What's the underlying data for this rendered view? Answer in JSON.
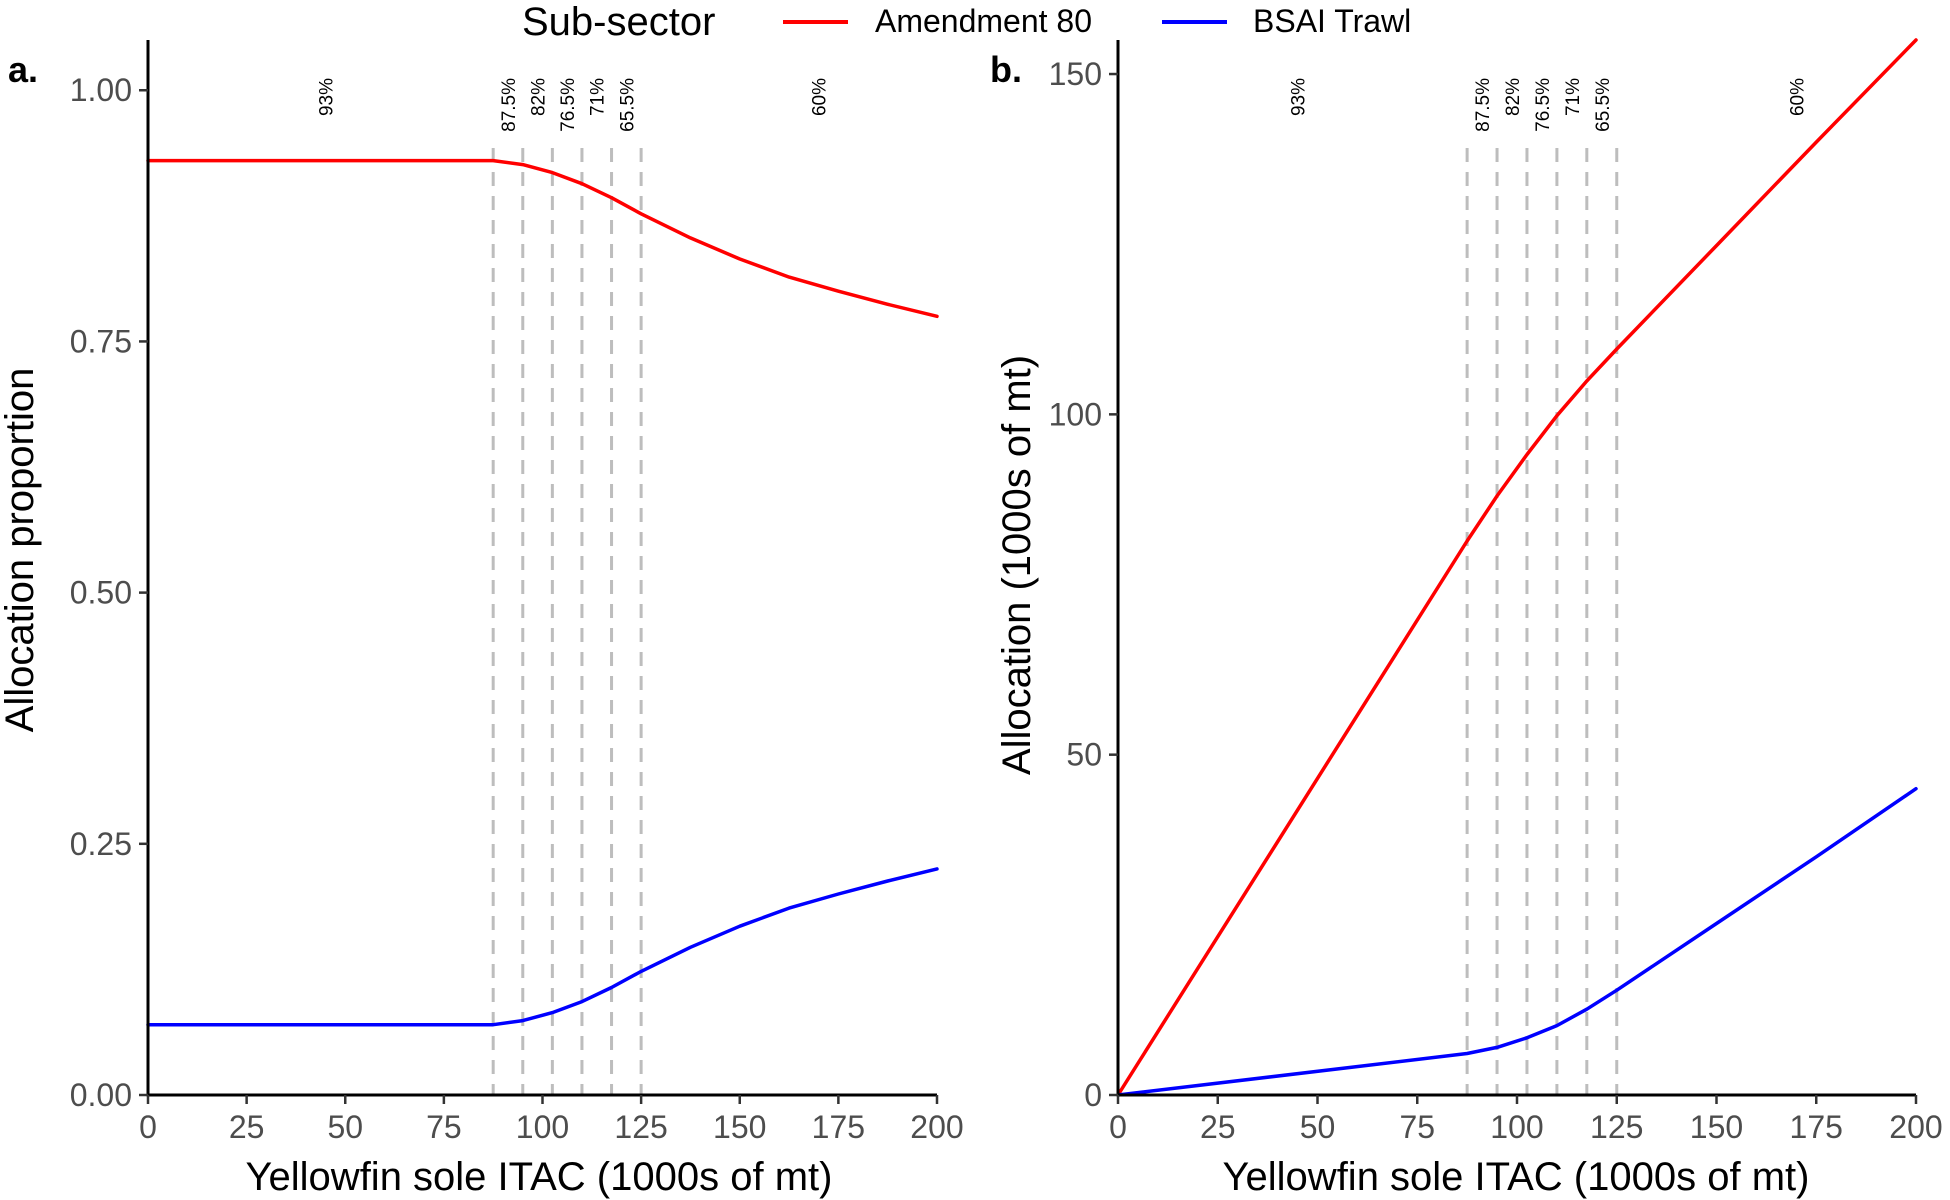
{
  "legend": {
    "title": "Sub-sector",
    "items": [
      {
        "label": "Amendment 80",
        "color": "#ff0000"
      },
      {
        "label": "BSAI Trawl",
        "color": "#0000ff"
      }
    ]
  },
  "chart_data": [
    {
      "panel_tag": "a.",
      "type": "line",
      "xlabel": "Yellowfin sole ITAC (1000s of mt)",
      "ylabel": "Allocation proportion",
      "xlim": [
        0,
        200
      ],
      "ylim": [
        0,
        1.05
      ],
      "xticks": [
        0,
        25,
        50,
        75,
        100,
        125,
        150,
        175,
        200
      ],
      "xtick_labels": [
        "0",
        "25",
        "50",
        "75",
        "100",
        "125",
        "150",
        "175",
        "200"
      ],
      "yticks": [
        0,
        0.25,
        0.5,
        0.75,
        1.0
      ],
      "ytick_labels": [
        "0.00",
        "0.25",
        "0.50",
        "0.75",
        "1.00"
      ],
      "grid": false,
      "vertical_lines": [
        87.5,
        95,
        102.5,
        110,
        117.5,
        125
      ],
      "regime_labels": [
        {
          "text": "93%",
          "x": 45
        },
        {
          "text": "87.5%",
          "x": 91.25
        },
        {
          "text": "82%",
          "x": 98.75
        },
        {
          "text": "76.5%",
          "x": 106.25
        },
        {
          "text": "71%",
          "x": 113.75
        },
        {
          "text": "65.5%",
          "x": 121.25
        },
        {
          "text": "60%",
          "x": 170
        }
      ],
      "series": [
        {
          "name": "Amendment 80",
          "color": "#ff0000",
          "x": [
            0,
            87.5,
            95,
            102.5,
            110,
            117.5,
            125,
            137.5,
            150,
            162.5,
            175,
            187.5,
            200
          ],
          "y": [
            0.93,
            0.93,
            0.926,
            0.918,
            0.907,
            0.893,
            0.877,
            0.853,
            0.832,
            0.814,
            0.8,
            0.787,
            0.775
          ]
        },
        {
          "name": "BSAI Trawl",
          "color": "#0000ff",
          "x": [
            0,
            87.5,
            95,
            102.5,
            110,
            117.5,
            125,
            137.5,
            150,
            162.5,
            175,
            187.5,
            200
          ],
          "y": [
            0.07,
            0.07,
            0.074,
            0.082,
            0.093,
            0.107,
            0.123,
            0.147,
            0.168,
            0.186,
            0.2,
            0.213,
            0.225
          ]
        }
      ]
    },
    {
      "panel_tag": "b.",
      "type": "line",
      "xlabel": "Yellowfin sole ITAC (1000s of mt)",
      "ylabel": "Allocation (1000s of mt)",
      "xlim": [
        0,
        200
      ],
      "ylim": [
        0,
        155
      ],
      "xticks": [
        0,
        25,
        50,
        75,
        100,
        125,
        150,
        175,
        200
      ],
      "xtick_labels": [
        "0",
        "25",
        "50",
        "75",
        "100",
        "125",
        "150",
        "175",
        "200"
      ],
      "yticks": [
        0,
        50,
        100,
        150
      ],
      "ytick_labels": [
        "0",
        "50",
        "100",
        "150"
      ],
      "grid": false,
      "vertical_lines": [
        87.5,
        95,
        102.5,
        110,
        117.5,
        125
      ],
      "regime_labels": [
        {
          "text": "93%",
          "x": 45
        },
        {
          "text": "87.5%",
          "x": 91.25
        },
        {
          "text": "82%",
          "x": 98.75
        },
        {
          "text": "76.5%",
          "x": 106.25
        },
        {
          "text": "71%",
          "x": 113.75
        },
        {
          "text": "65.5%",
          "x": 121.25
        },
        {
          "text": "60%",
          "x": 170
        }
      ],
      "series": [
        {
          "name": "Amendment 80",
          "color": "#ff0000",
          "x": [
            0,
            87.5,
            95,
            102.5,
            110,
            117.5,
            125,
            150,
            175,
            200
          ],
          "y": [
            0,
            81.4,
            88.0,
            94.1,
            99.8,
            104.9,
            109.6,
            124.8,
            140.0,
            155.0
          ]
        },
        {
          "name": "BSAI Trawl",
          "color": "#0000ff",
          "x": [
            0,
            87.5,
            95,
            102.5,
            110,
            117.5,
            125,
            150,
            175,
            200
          ],
          "y": [
            0,
            6.1,
            7.0,
            8.4,
            10.2,
            12.6,
            15.4,
            25.2,
            35.0,
            45.0
          ]
        }
      ]
    }
  ]
}
